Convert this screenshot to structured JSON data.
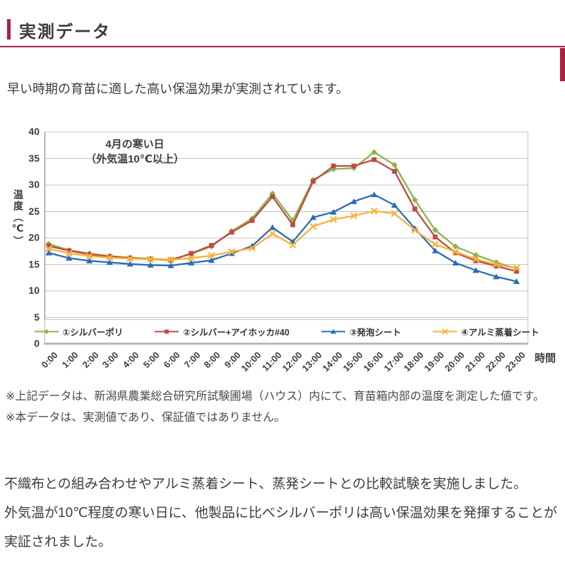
{
  "page": {
    "title": "実測データ",
    "accent_color": "#b01e41",
    "intro": "早い時期の育苗に適した高い保温効果が実測されています。",
    "notes": [
      "※上記データは、新潟県農業総合研究所試験圃場（ハウス）内にて、育苗箱内部の温度を測定した値です。",
      "※本データは、実測値であり、保証値ではありません。"
    ],
    "conclusion": [
      "不織布との組み合わせやアルミ蒸着シート、蒸発シートとの比較試験を実施しました。",
      "外気温が10℃程度の寒い日に、他製品に比べシルバーポリは高い保温効果を発揮することが",
      "実証されました。"
    ]
  },
  "chart_data": {
    "type": "line",
    "annotation": [
      "4月の寒い日",
      "（外気温10℃以上）"
    ],
    "xlabel": "時間",
    "ylabel": "温度（℃）",
    "ylim": [
      0,
      40
    ],
    "ytick_step": 5,
    "grid": true,
    "legend_position": "bottom-inside",
    "categories": [
      "0:00",
      "1:00",
      "2:00",
      "3:00",
      "4:00",
      "5:00",
      "6:00",
      "7:00",
      "8:00",
      "9:00",
      "10:00",
      "11:00",
      "12:00",
      "13:00",
      "14:00",
      "15:00",
      "16:00",
      "17:00",
      "18:00",
      "19:00",
      "20:00",
      "21:00",
      "22:00",
      "23:00"
    ],
    "series": [
      {
        "name": "①シルバーポリ",
        "color": "#8cb34c",
        "marker": "diamond",
        "values": [
          18.9,
          17.7,
          17.1,
          16.6,
          16.3,
          16.1,
          15.9,
          17.0,
          18.4,
          21.3,
          23.7,
          28.4,
          23.3,
          31.0,
          33.0,
          33.2,
          36.2,
          33.8,
          27.2,
          21.5,
          18.4,
          16.8,
          15.4,
          14.2
        ]
      },
      {
        "name": "②シルバー+アイホッカ#40",
        "color": "#bf4b46",
        "marker": "square",
        "values": [
          18.5,
          17.6,
          16.9,
          16.5,
          16.2,
          16.0,
          15.8,
          17.1,
          18.6,
          21.1,
          23.3,
          27.8,
          22.5,
          30.7,
          33.6,
          33.6,
          34.8,
          32.6,
          25.5,
          20.2,
          17.2,
          15.7,
          14.7,
          13.7
        ]
      },
      {
        "name": "③発泡シート",
        "color": "#2b6cb7",
        "marker": "triangle",
        "values": [
          17.2,
          16.2,
          15.7,
          15.4,
          15.1,
          14.9,
          14.8,
          15.3,
          15.8,
          17.1,
          18.5,
          22.0,
          19.3,
          23.9,
          24.9,
          26.9,
          28.2,
          26.2,
          21.8,
          17.6,
          15.3,
          13.9,
          12.7,
          11.8
        ]
      },
      {
        "name": "④アルミ蒸着シート",
        "color": "#f7b23c",
        "marker": "x",
        "values": [
          18.0,
          17.1,
          16.6,
          16.3,
          16.1,
          16.0,
          15.9,
          16.2,
          16.7,
          17.4,
          18.1,
          20.8,
          18.7,
          22.2,
          23.5,
          24.2,
          25.1,
          24.6,
          21.5,
          18.8,
          17.4,
          16.0,
          15.0,
          14.3
        ]
      }
    ]
  }
}
